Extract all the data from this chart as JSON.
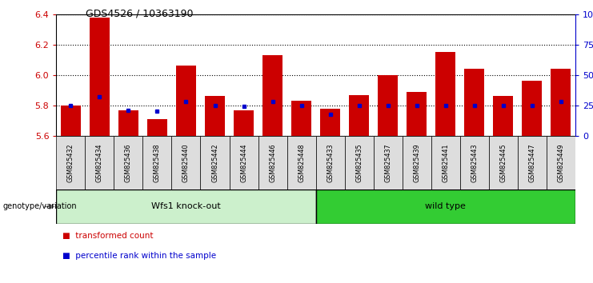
{
  "title": "GDS4526 / 10363190",
  "samples": [
    "GSM825432",
    "GSM825434",
    "GSM825436",
    "GSM825438",
    "GSM825440",
    "GSM825442",
    "GSM825444",
    "GSM825446",
    "GSM825448",
    "GSM825433",
    "GSM825435",
    "GSM825437",
    "GSM825439",
    "GSM825441",
    "GSM825443",
    "GSM825445",
    "GSM825447",
    "GSM825449"
  ],
  "red_values": [
    5.8,
    6.38,
    5.77,
    5.71,
    6.06,
    5.86,
    5.77,
    6.13,
    5.83,
    5.78,
    5.87,
    6.0,
    5.89,
    6.15,
    6.04,
    5.86,
    5.96,
    6.04
  ],
  "blue_percentile": [
    25,
    32,
    21,
    20,
    28,
    25,
    24,
    28,
    25,
    18,
    25,
    25,
    25,
    25,
    25,
    25,
    25,
    28
  ],
  "ylim_left": [
    5.6,
    6.4
  ],
  "ylim_right": [
    0,
    100
  ],
  "yticks_left": [
    5.6,
    5.8,
    6.0,
    6.2,
    6.4
  ],
  "yticks_right": [
    0,
    25,
    50,
    75,
    100
  ],
  "ytick_labels_right": [
    "0",
    "25",
    "50",
    "75",
    "100%"
  ],
  "group1_label": "Wfs1 knock-out",
  "group2_label": "wild type",
  "group1_count": 9,
  "group2_count": 9,
  "genotype_label": "genotype/variation",
  "legend1": "transformed count",
  "legend2": "percentile rank within the sample",
  "bar_color": "#cc0000",
  "dot_color": "#0000cc",
  "group1_bg": "#ccf0cc",
  "group2_bg": "#33cc33",
  "tick_bg": "#dddddd",
  "axis_color_left": "#cc0000",
  "axis_color_right": "#0000cc",
  "bar_bottom": 5.6,
  "bar_width": 0.7
}
